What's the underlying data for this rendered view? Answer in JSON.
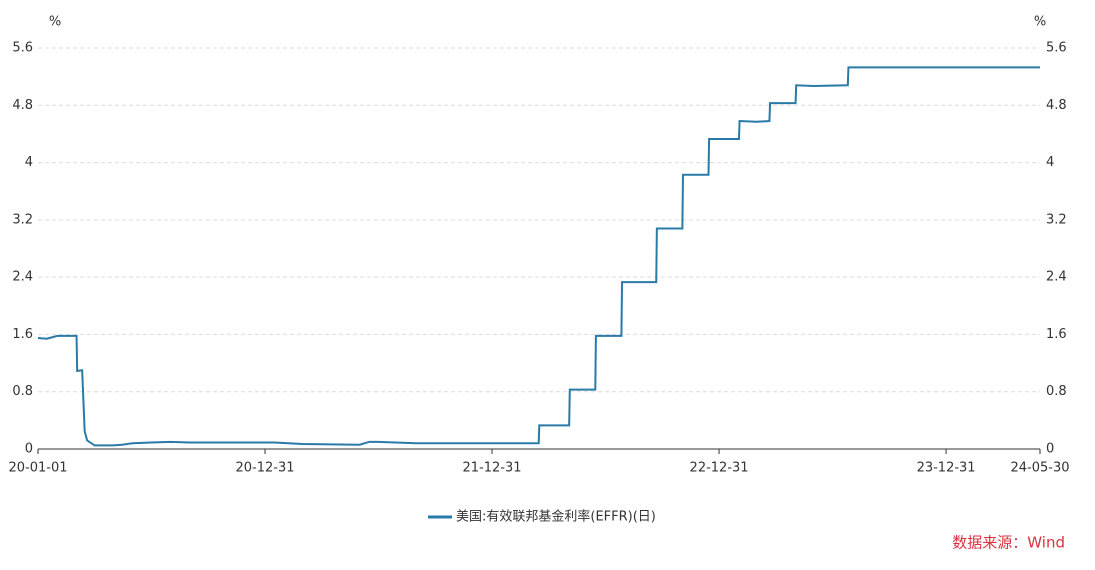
{
  "chart_data": {
    "type": "line",
    "y_unit": "%",
    "source": "数据来源：Wind",
    "x": [
      "20-01-01",
      "20-01-15",
      "20-02-01",
      "20-03-03",
      "20-03-04",
      "20-03-12",
      "20-03-16",
      "20-03-20",
      "20-04-01",
      "20-05-01",
      "20-05-15",
      "20-06-01",
      "20-07-01",
      "20-08-01",
      "20-09-01",
      "20-12-01",
      "21-01-15",
      "21-03-01",
      "21-06-01",
      "21-06-17",
      "21-07-01",
      "21-09-01",
      "21-12-01",
      "22-03-16",
      "22-03-17",
      "22-05-04",
      "22-05-05",
      "22-06-15",
      "22-06-16",
      "22-07-27",
      "22-07-28",
      "22-09-21",
      "22-09-22",
      "22-11-02",
      "22-11-03",
      "22-12-14",
      "22-12-15",
      "23-02-01",
      "23-02-02",
      "23-03-01",
      "23-03-22",
      "23-03-23",
      "23-05-03",
      "23-05-04",
      "23-06-01",
      "23-07-26",
      "23-07-27",
      "24-05-30"
    ],
    "series": [
      {
        "name": "美国:有效联邦基金利率(EFFR)(日)",
        "color": "#2a7aa8",
        "values": [
          1.55,
          1.54,
          1.58,
          1.58,
          1.09,
          1.1,
          0.25,
          0.12,
          0.05,
          0.05,
          0.06,
          0.08,
          0.09,
          0.1,
          0.09,
          0.09,
          0.09,
          0.07,
          0.06,
          0.1,
          0.1,
          0.08,
          0.08,
          0.08,
          0.33,
          0.33,
          0.83,
          0.83,
          1.58,
          1.58,
          2.33,
          2.33,
          3.08,
          3.08,
          3.83,
          3.83,
          4.33,
          4.33,
          4.58,
          4.57,
          4.58,
          4.83,
          4.83,
          5.08,
          5.07,
          5.08,
          5.33,
          5.33
        ]
      }
    ],
    "xlim": [
      "20-01-01",
      "24-05-30"
    ],
    "xticks": [
      "20-01-01",
      "20-12-31",
      "21-12-31",
      "22-12-31",
      "23-12-31",
      "24-05-30"
    ],
    "ylim": [
      0,
      5.6
    ],
    "yticks": [
      0,
      0.8,
      1.6,
      2.4,
      3.2,
      4,
      4.8,
      5.6
    ],
    "grid": true
  }
}
